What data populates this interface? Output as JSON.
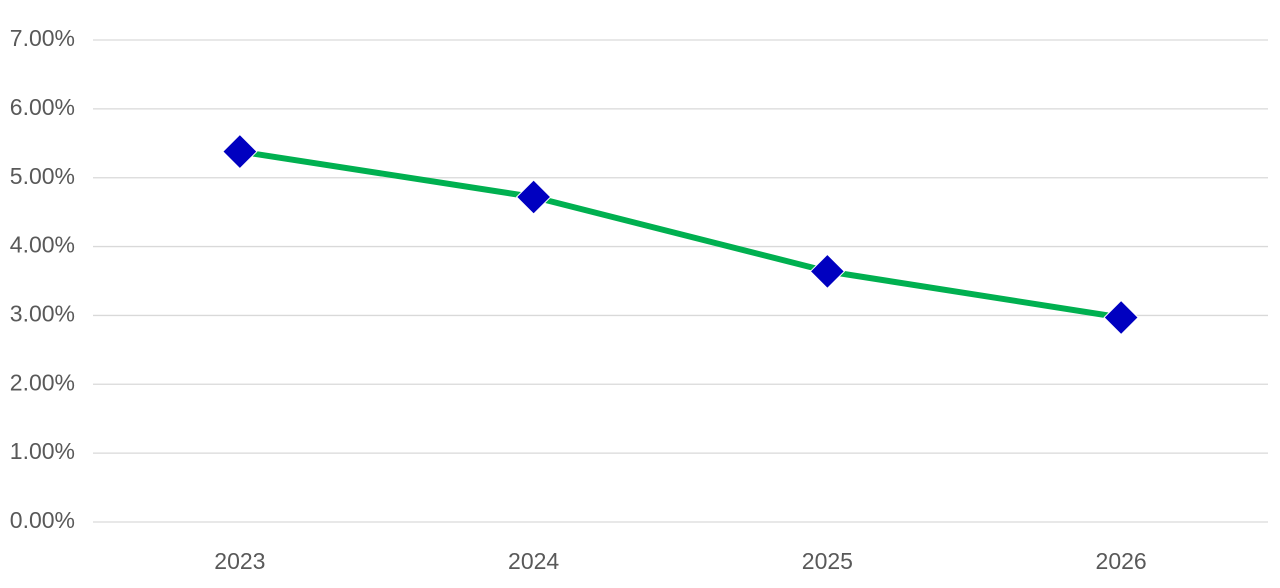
{
  "chart_data": {
    "type": "line",
    "title": "",
    "xlabel": "",
    "ylabel": "",
    "categories": [
      "2023",
      "2024",
      "2025",
      "2026"
    ],
    "series": [
      {
        "values": [
          0.0538,
          0.0472,
          0.0364,
          0.0297
        ],
        "line_color": "#00B050",
        "marker": "diamond",
        "marker_color": "#0000C0"
      }
    ],
    "ylim": [
      0,
      0.07
    ],
    "yticks": [
      0,
      0.01,
      0.02,
      0.03,
      0.04,
      0.05,
      0.06,
      0.07
    ],
    "ytick_labels": [
      "0.00%",
      "1.00%",
      "2.00%",
      "3.00%",
      "4.00%",
      "5.00%",
      "6.00%",
      "7.00%"
    ],
    "grid": "horizontal",
    "legend": "none",
    "gridline_color": "#D9D9D9"
  }
}
